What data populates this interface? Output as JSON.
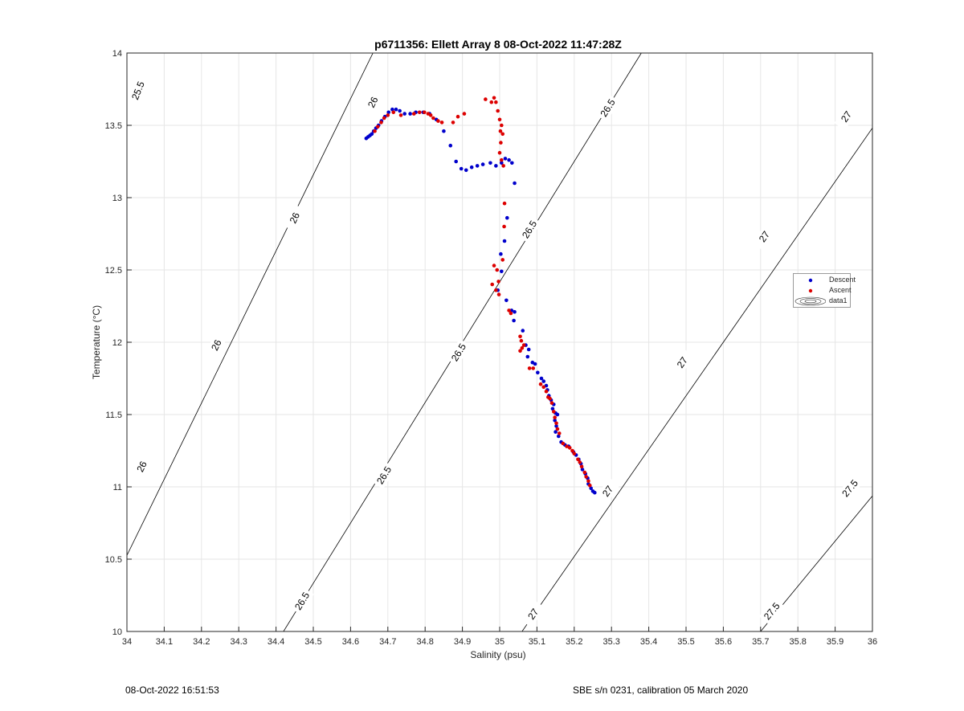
{
  "chart_data": {
    "type": "scatter",
    "title": "p6711356: Ellett Array 8 08-Oct-2022 11:47:28Z",
    "xlabel": "Salinity (psu)",
    "ylabel": "Temperature (°C)",
    "xlim": [
      34,
      36
    ],
    "ylim": [
      10,
      14
    ],
    "grid": true,
    "legend_placement": "right",
    "x_ticks": [
      "34",
      "34.1",
      "34.2",
      "34.3",
      "34.4",
      "34.5",
      "34.6",
      "34.7",
      "34.8",
      "34.9",
      "35",
      "35.1",
      "35.2",
      "35.3",
      "35.4",
      "35.5",
      "35.6",
      "35.7",
      "35.8",
      "35.9",
      "36"
    ],
    "y_ticks": [
      "10",
      "10.5",
      "11",
      "11.5",
      "12",
      "12.5",
      "13",
      "13.5",
      "14"
    ],
    "legend": [
      "Descent",
      "Ascent",
      "data1"
    ],
    "contours": {
      "name": "data1",
      "color": "#000000",
      "levels": [
        {
          "level": 25.5,
          "label": "25.5",
          "s_at_10": 33.32,
          "s_at_14": 33.95,
          "label_points": [
            [
              34.03,
              13.74
            ]
          ]
        },
        {
          "level": 26.0,
          "label": "26",
          "s_at_10": 33.9,
          "s_at_14": 34.66,
          "label_points": [
            [
              34.04,
              11.14
            ],
            [
              34.24,
              11.98
            ],
            [
              34.45,
              12.86
            ],
            [
              34.66,
              13.66
            ]
          ]
        },
        {
          "level": 26.5,
          "label": "26.5",
          "s_at_10": 34.42,
          "s_at_14": 35.38,
          "label_points": [
            [
              34.47,
              10.21
            ],
            [
              34.69,
              11.08
            ],
            [
              34.89,
              11.93
            ],
            [
              35.08,
              12.78
            ],
            [
              35.29,
              13.62
            ]
          ]
        },
        {
          "level": 27.0,
          "label": "27",
          "s_at_10": 35.06,
          "s_at_14": 36.14,
          "label_points": [
            [
              35.09,
              10.12
            ],
            [
              35.29,
              10.97
            ],
            [
              35.49,
              11.86
            ],
            [
              35.71,
              12.73
            ],
            [
              35.93,
              13.56
            ]
          ]
        },
        {
          "level": 27.5,
          "label": "27.5",
          "s_at_10": 35.7,
          "s_at_14": 36.98,
          "label_points": [
            [
              35.73,
              10.14
            ],
            [
              35.94,
              10.99
            ]
          ]
        }
      ]
    },
    "series": [
      {
        "name": "Descent",
        "color": "#0000cc",
        "points": [
          [
            34.642,
            13.41
          ],
          [
            34.647,
            13.42
          ],
          [
            34.652,
            13.43
          ],
          [
            34.657,
            13.44
          ],
          [
            34.662,
            13.46
          ],
          [
            34.668,
            13.48
          ],
          [
            34.675,
            13.5
          ],
          [
            34.683,
            13.53
          ],
          [
            34.692,
            13.56
          ],
          [
            34.702,
            13.59
          ],
          [
            34.712,
            13.61
          ],
          [
            34.722,
            13.61
          ],
          [
            34.732,
            13.6
          ],
          [
            34.745,
            13.58
          ],
          [
            34.76,
            13.58
          ],
          [
            34.775,
            13.59
          ],
          [
            34.795,
            13.59
          ],
          [
            34.812,
            13.58
          ],
          [
            34.83,
            13.54
          ],
          [
            34.85,
            13.46
          ],
          [
            34.868,
            13.36
          ],
          [
            34.883,
            13.25
          ],
          [
            34.897,
            13.2
          ],
          [
            34.91,
            13.19
          ],
          [
            34.925,
            13.21
          ],
          [
            34.94,
            13.22
          ],
          [
            34.955,
            13.23
          ],
          [
            34.975,
            13.24
          ],
          [
            34.99,
            13.22
          ],
          [
            35.005,
            13.24
          ],
          [
            35.015,
            13.27
          ],
          [
            35.025,
            13.26
          ],
          [
            35.033,
            13.24
          ],
          [
            35.04,
            13.1
          ],
          [
            35.02,
            12.86
          ],
          [
            35.013,
            12.7
          ],
          [
            35.003,
            12.61
          ],
          [
            35.005,
            12.49
          ],
          [
            34.995,
            12.36
          ],
          [
            35.018,
            12.29
          ],
          [
            35.032,
            12.22
          ],
          [
            35.04,
            12.21
          ],
          [
            35.038,
            12.15
          ],
          [
            35.062,
            12.08
          ],
          [
            35.07,
            11.98
          ],
          [
            35.078,
            11.95
          ],
          [
            35.075,
            11.9
          ],
          [
            35.088,
            11.86
          ],
          [
            35.095,
            11.85
          ],
          [
            35.102,
            11.79
          ],
          [
            35.112,
            11.75
          ],
          [
            35.118,
            11.73
          ],
          [
            35.125,
            11.7
          ],
          [
            35.128,
            11.67
          ],
          [
            35.132,
            11.63
          ],
          [
            35.138,
            11.6
          ],
          [
            35.145,
            11.57
          ],
          [
            35.142,
            11.54
          ],
          [
            35.15,
            11.51
          ],
          [
            35.155,
            11.5
          ],
          [
            35.148,
            11.46
          ],
          [
            35.152,
            11.42
          ],
          [
            35.15,
            11.38
          ],
          [
            35.158,
            11.35
          ],
          [
            35.165,
            11.31
          ],
          [
            35.175,
            11.29
          ],
          [
            35.185,
            11.28
          ],
          [
            35.198,
            11.24
          ],
          [
            35.205,
            11.22
          ],
          [
            35.212,
            11.19
          ],
          [
            35.218,
            11.16
          ],
          [
            35.222,
            11.12
          ],
          [
            35.23,
            11.09
          ],
          [
            35.236,
            11.06
          ],
          [
            35.238,
            11.02
          ],
          [
            35.245,
            10.99
          ],
          [
            35.25,
            10.97
          ],
          [
            35.255,
            10.96
          ]
        ]
      },
      {
        "name": "Ascent",
        "color": "#dd0000",
        "points": [
          [
            34.665,
            13.46
          ],
          [
            34.673,
            13.49
          ],
          [
            34.682,
            13.52
          ],
          [
            34.69,
            13.55
          ],
          [
            34.7,
            13.57
          ],
          [
            34.715,
            13.59
          ],
          [
            34.735,
            13.57
          ],
          [
            34.77,
            13.58
          ],
          [
            34.785,
            13.59
          ],
          [
            34.798,
            13.59
          ],
          [
            34.808,
            13.58
          ],
          [
            34.815,
            13.57
          ],
          [
            34.822,
            13.55
          ],
          [
            34.835,
            13.53
          ],
          [
            34.845,
            13.52
          ],
          [
            34.875,
            13.52
          ],
          [
            34.888,
            13.56
          ],
          [
            34.905,
            13.58
          ],
          [
            34.962,
            13.68
          ],
          [
            34.978,
            13.66
          ],
          [
            34.985,
            13.69
          ],
          [
            34.99,
            13.66
          ],
          [
            34.995,
            13.6
          ],
          [
            35.0,
            13.54
          ],
          [
            35.005,
            13.5
          ],
          [
            35.002,
            13.46
          ],
          [
            35.008,
            13.44
          ],
          [
            35.003,
            13.38
          ],
          [
            35.0,
            13.31
          ],
          [
            35.005,
            13.26
          ],
          [
            35.01,
            13.22
          ],
          [
            35.013,
            12.96
          ],
          [
            35.012,
            12.8
          ],
          [
            35.008,
            12.57
          ],
          [
            34.985,
            12.53
          ],
          [
            34.993,
            12.5
          ],
          [
            34.997,
            12.42
          ],
          [
            34.98,
            12.4
          ],
          [
            34.99,
            12.36
          ],
          [
            34.998,
            12.33
          ],
          [
            35.025,
            12.22
          ],
          [
            35.03,
            12.2
          ],
          [
            35.055,
            12.04
          ],
          [
            35.058,
            12.01
          ],
          [
            35.06,
            11.96
          ],
          [
            35.055,
            11.94
          ],
          [
            35.065,
            11.98
          ],
          [
            35.08,
            11.82
          ],
          [
            35.09,
            11.82
          ],
          [
            35.11,
            11.71
          ],
          [
            35.118,
            11.69
          ],
          [
            35.125,
            11.66
          ],
          [
            35.13,
            11.62
          ],
          [
            35.135,
            11.61
          ],
          [
            35.14,
            11.58
          ],
          [
            35.145,
            11.52
          ],
          [
            35.148,
            11.48
          ],
          [
            35.152,
            11.44
          ],
          [
            35.155,
            11.4
          ],
          [
            35.16,
            11.37
          ],
          [
            35.17,
            11.3
          ],
          [
            35.18,
            11.28
          ],
          [
            35.188,
            11.27
          ],
          [
            35.195,
            11.25
          ],
          [
            35.2,
            11.23
          ],
          [
            35.21,
            11.19
          ],
          [
            35.215,
            11.17
          ],
          [
            35.22,
            11.14
          ],
          [
            35.228,
            11.1
          ],
          [
            35.232,
            11.07
          ],
          [
            35.238,
            11.04
          ],
          [
            35.242,
            11.01
          ]
        ]
      }
    ]
  },
  "footer": {
    "left": "08-Oct-2022 16:51:53",
    "right": "SBE s/n 0231, calibration 05 March 2020"
  }
}
